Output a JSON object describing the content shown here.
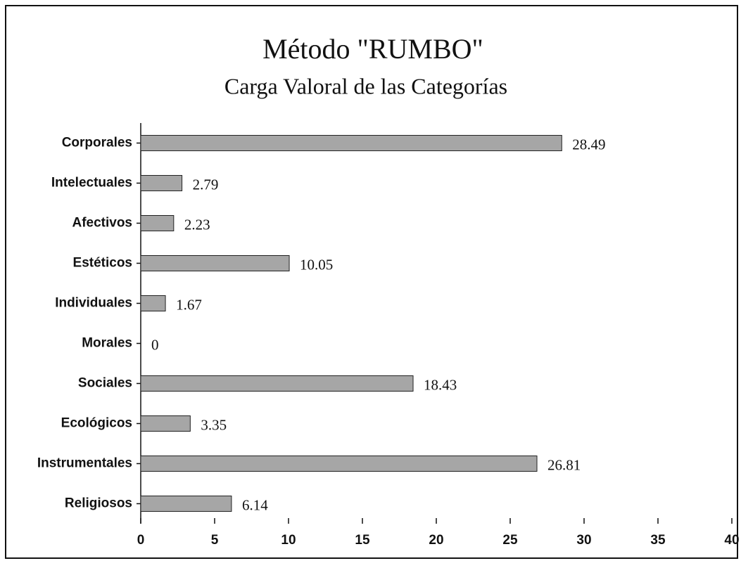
{
  "chart_data": {
    "type": "bar",
    "orientation": "horizontal",
    "title": "Método \"RUMBO\"",
    "subtitle": "Carga Valoral de las Categorías",
    "categories": [
      "Corporales",
      "Intelectuales",
      "Afectivos",
      "Estéticos",
      "Individuales",
      "Morales",
      "Sociales",
      "Ecológicos",
      "Instrumentales",
      "Religiosos"
    ],
    "values": [
      28.49,
      2.79,
      2.23,
      10.05,
      1.67,
      0,
      18.43,
      3.35,
      26.81,
      6.14
    ],
    "color": "#a6a6a6",
    "xlim": [
      0,
      40
    ],
    "xticks": [
      0,
      5,
      10,
      15,
      20,
      25,
      30,
      35,
      40
    ],
    "grid": false
  }
}
